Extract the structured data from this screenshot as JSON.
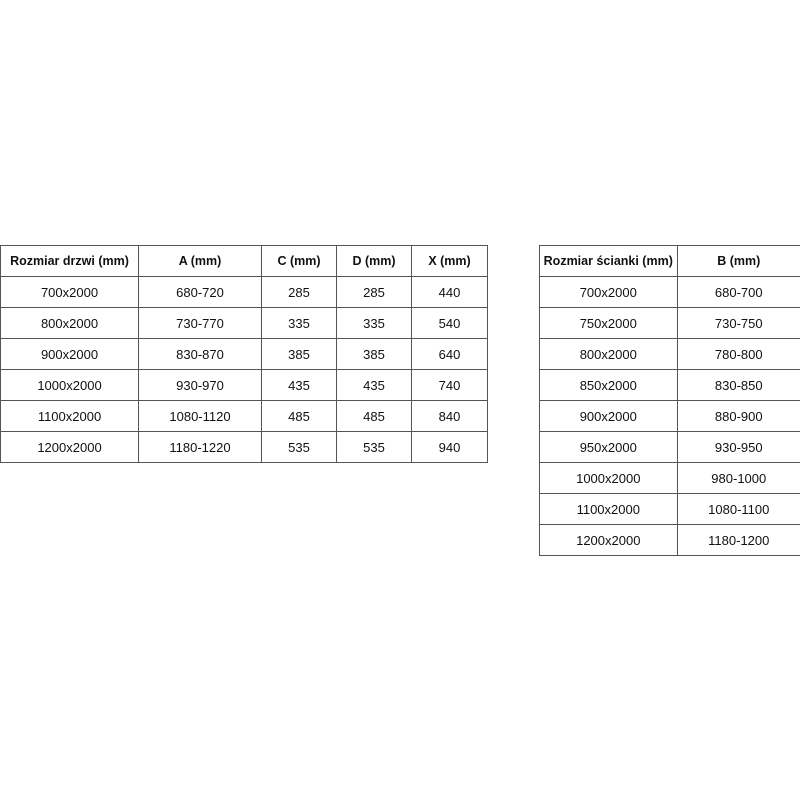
{
  "door_table": {
    "headers": [
      "Rozmiar drzwi (mm)",
      "A (mm)",
      "C (mm)",
      "D (mm)",
      "X (mm)"
    ],
    "rows": [
      [
        "700x2000",
        "680-720",
        "285",
        "285",
        "440"
      ],
      [
        "800x2000",
        "730-770",
        "335",
        "335",
        "540"
      ],
      [
        "900x2000",
        "830-870",
        "385",
        "385",
        "640"
      ],
      [
        "1000x2000",
        "930-970",
        "435",
        "435",
        "740"
      ],
      [
        "1100x2000",
        "1080-1120",
        "485",
        "485",
        "840"
      ],
      [
        "1200x2000",
        "1180-1220",
        "535",
        "535",
        "940"
      ]
    ]
  },
  "wall_table": {
    "headers": [
      "Rozmiar ścianki (mm)",
      "B (mm)"
    ],
    "rows": [
      [
        "700x2000",
        "680-700"
      ],
      [
        "750x2000",
        "730-750"
      ],
      [
        "800x2000",
        "780-800"
      ],
      [
        "850x2000",
        "830-850"
      ],
      [
        "900x2000",
        "880-900"
      ],
      [
        "950x2000",
        "930-950"
      ],
      [
        "1000x2000",
        "980-1000"
      ],
      [
        "1100x2000",
        "1080-1100"
      ],
      [
        "1200x2000",
        "1180-1200"
      ]
    ]
  }
}
